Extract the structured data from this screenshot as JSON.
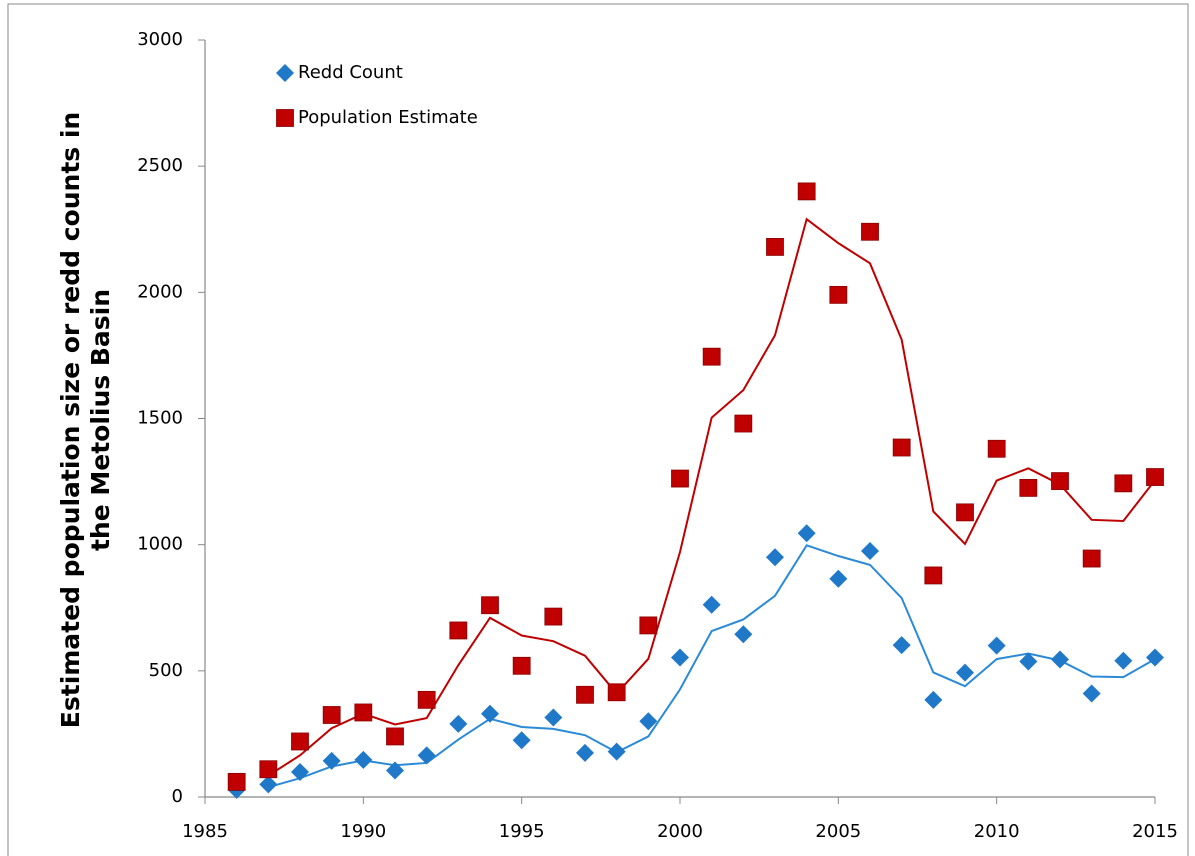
{
  "chart_data": {
    "type": "scatter",
    "ylabel": [
      "Estimated population size or redd counts in",
      "the Metolius Basin"
    ],
    "x": [
      1986,
      1987,
      1988,
      1989,
      1990,
      1991,
      1992,
      1993,
      1994,
      1995,
      1996,
      1997,
      1998,
      1999,
      2000,
      2001,
      2002,
      2003,
      2004,
      2005,
      2006,
      2007,
      2008,
      2009,
      2010,
      2011,
      2012,
      2013,
      2014,
      2015
    ],
    "series": [
      {
        "name": "Redd Count",
        "color": "#1f78c8",
        "marker": "diamond",
        "line_color": "#2b8ad8",
        "values": [
          28,
          50,
          99,
          143,
          147,
          105,
          165,
          290,
          330,
          225,
          315,
          175,
          180,
          300,
          553,
          762,
          645,
          950,
          1045,
          865,
          975,
          602,
          385,
          493,
          600,
          537,
          545,
          410,
          540,
          553
        ]
      },
      {
        "name": "Population Estimate",
        "color": "#c00000",
        "marker": "square",
        "line_color": "#c00000",
        "values": [
          60,
          110,
          220,
          325,
          335,
          240,
          385,
          660,
          760,
          520,
          715,
          405,
          415,
          680,
          1262,
          1745,
          1480,
          2180,
          2400,
          1990,
          2240,
          1385,
          878,
          1128,
          1380,
          1225,
          1252,
          945,
          1243,
          1268
        ]
      }
    ],
    "trendline": "moving_average",
    "trendline_period": 2,
    "xlim": [
      1985,
      2015
    ],
    "xticks": [
      1985,
      1990,
      1995,
      2000,
      2005,
      2010,
      2015
    ],
    "ylim": [
      0,
      3000
    ],
    "yticks": [
      0,
      500,
      1000,
      1500,
      2000,
      2500,
      3000
    ],
    "grid": false,
    "legend": "upper left"
  }
}
